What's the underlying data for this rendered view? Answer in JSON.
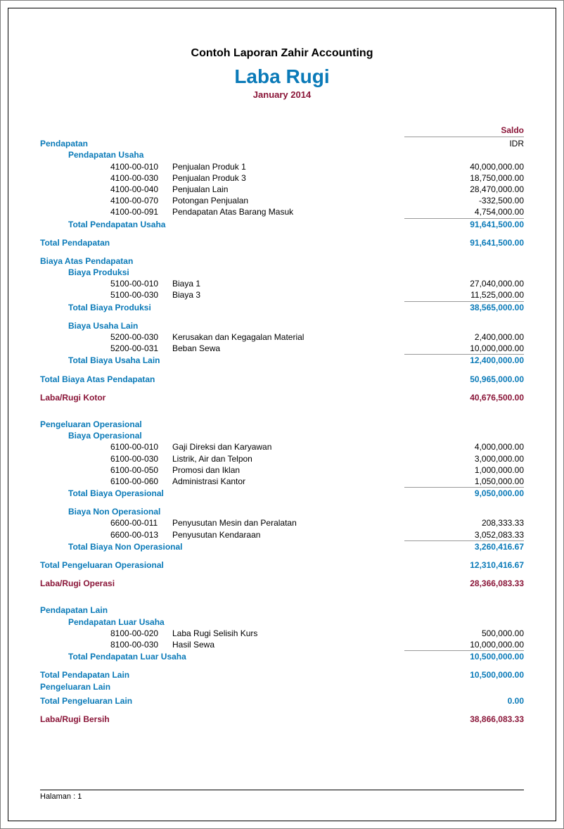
{
  "colors": {
    "blue": "#0a7ab8",
    "maroon": "#8a1538",
    "text": "#000000",
    "rule": "#999999",
    "border": "#000000"
  },
  "fonts": {
    "family": "Segoe UI, Tahoma, Arial, sans-serif",
    "title_size_pt": 21,
    "company_size_pt": 12,
    "period_size_pt": 10,
    "body_size_pt": 9
  },
  "header": {
    "company": "Contoh Laporan Zahir Accounting",
    "title": "Laba Rugi",
    "period": "January 2014"
  },
  "column_header": "Saldo",
  "currency": "IDR",
  "sections": {
    "pendapatan": {
      "label": "Pendapatan",
      "sub": {
        "usaha": {
          "label": "Pendapatan Usaha",
          "items": [
            {
              "code": "4100-00-010",
              "desc": "Penjualan Produk 1",
              "amount": "40,000,000.00"
            },
            {
              "code": "4100-00-030",
              "desc": "Penjualan Produk 3",
              "amount": "18,750,000.00"
            },
            {
              "code": "4100-00-040",
              "desc": "Penjualan Lain",
              "amount": "28,470,000.00"
            },
            {
              "code": "4100-00-070",
              "desc": "Potongan Penjualan",
              "amount": "-332,500.00"
            },
            {
              "code": "4100-00-091",
              "desc": "Pendapatan Atas Barang Masuk",
              "amount": "4,754,000.00"
            }
          ],
          "total_label": "Total Pendapatan Usaha",
          "total_amount": "91,641,500.00"
        }
      },
      "total_label": "Total Pendapatan",
      "total_amount": "91,641,500.00"
    },
    "biaya_atas_pendapatan": {
      "label": "Biaya Atas Pendapatan",
      "sub": {
        "produksi": {
          "label": "Biaya Produksi",
          "items": [
            {
              "code": "5100-00-010",
              "desc": "Biaya 1",
              "amount": "27,040,000.00"
            },
            {
              "code": "5100-00-030",
              "desc": "Biaya 3",
              "amount": "11,525,000.00"
            }
          ],
          "total_label": "Total Biaya Produksi",
          "total_amount": "38,565,000.00"
        },
        "usaha_lain": {
          "label": "Biaya Usaha Lain",
          "items": [
            {
              "code": "5200-00-030",
              "desc": "Kerusakan dan Kegagalan Material",
              "amount": "2,400,000.00"
            },
            {
              "code": "5200-00-031",
              "desc": "Beban Sewa",
              "amount": "10,000,000.00"
            }
          ],
          "total_label": "Total Biaya Usaha Lain",
          "total_amount": "12,400,000.00"
        }
      },
      "total_label": "Total Biaya Atas Pendapatan",
      "total_amount": "50,965,000.00"
    },
    "laba_rugi_kotor": {
      "label": "Laba/Rugi Kotor",
      "amount": "40,676,500.00"
    },
    "pengeluaran_operasional": {
      "label": "Pengeluaran Operasional",
      "sub": {
        "operasional": {
          "label": "Biaya Operasional",
          "items": [
            {
              "code": "6100-00-010",
              "desc": "Gaji Direksi dan Karyawan",
              "amount": "4,000,000.00"
            },
            {
              "code": "6100-00-030",
              "desc": "Listrik, Air dan Telpon",
              "amount": "3,000,000.00"
            },
            {
              "code": "6100-00-050",
              "desc": "Promosi dan Iklan",
              "amount": "1,000,000.00"
            },
            {
              "code": "6100-00-060",
              "desc": "Administrasi Kantor",
              "amount": "1,050,000.00"
            }
          ],
          "total_label": "Total Biaya Operasional",
          "total_amount": "9,050,000.00"
        },
        "non_operasional": {
          "label": "Biaya Non Operasional",
          "items": [
            {
              "code": "6600-00-011",
              "desc": "Penyusutan Mesin dan Peralatan",
              "amount": "208,333.33"
            },
            {
              "code": "6600-00-013",
              "desc": "Penyusutan Kendaraan",
              "amount": "3,052,083.33"
            }
          ],
          "total_label": "Total Biaya Non Operasional",
          "total_amount": "3,260,416.67"
        }
      },
      "total_label": "Total Pengeluaran Operasional",
      "total_amount": "12,310,416.67"
    },
    "laba_rugi_operasi": {
      "label": "Laba/Rugi Operasi",
      "amount": "28,366,083.33"
    },
    "pendapatan_lain": {
      "label": "Pendapatan Lain",
      "sub": {
        "luar_usaha": {
          "label": "Pendapatan Luar Usaha",
          "items": [
            {
              "code": "8100-00-020",
              "desc": "Laba Rugi Selisih Kurs",
              "amount": "500,000.00"
            },
            {
              "code": "8100-00-030",
              "desc": "Hasil Sewa",
              "amount": "10,000,000.00"
            }
          ],
          "total_label": "Total Pendapatan Luar Usaha",
          "total_amount": "10,500,000.00"
        }
      },
      "total_label": "Total Pendapatan Lain",
      "total_amount": "10,500,000.00"
    },
    "pengeluaran_lain": {
      "label": "Pengeluaran Lain",
      "total_label": "Total Pengeluaran Lain",
      "total_amount": "0.00"
    },
    "laba_rugi_bersih": {
      "label": "Laba/Rugi Bersih",
      "amount": "38,866,083.33"
    }
  },
  "footer": {
    "page_label": "Halaman : 1"
  }
}
